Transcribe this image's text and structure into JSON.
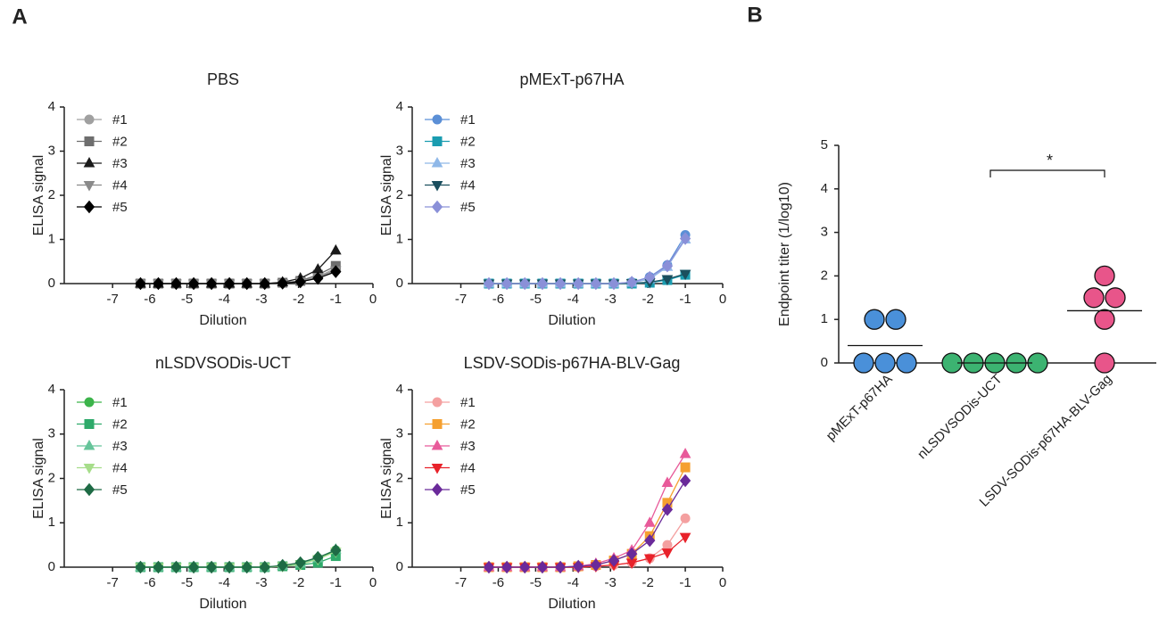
{
  "panels": [
    "A",
    "B"
  ],
  "chart_data": [
    {
      "type": "line",
      "title": "PBS",
      "xlabel": "Dilution",
      "ylabel": "ELISA signal",
      "xlim": [
        -8.3,
        0
      ],
      "xticks": [
        -7,
        -6,
        -5,
        -4,
        -3,
        -2,
        -1,
        0
      ],
      "ylim": [
        0,
        4
      ],
      "yticks": [
        0,
        1,
        2,
        3,
        4
      ],
      "x": [
        -6.25,
        -5.77,
        -5.29,
        -4.82,
        -4.34,
        -3.86,
        -3.39,
        -2.91,
        -2.43,
        -1.95,
        -1.48,
        -1
      ],
      "series": [
        {
          "name": "#1",
          "color": "#a0a0a0",
          "marker": "circle",
          "values": [
            0,
            0,
            0,
            0,
            0,
            0,
            0,
            0,
            0.02,
            0.05,
            0.15,
            0.35
          ]
        },
        {
          "name": "#2",
          "color": "#6e6e6e",
          "marker": "square",
          "values": [
            0,
            0,
            0,
            0,
            0,
            0,
            0,
            0,
            0.02,
            0.06,
            0.2,
            0.4
          ]
        },
        {
          "name": "#3",
          "color": "#1a1a1a",
          "marker": "triangle",
          "values": [
            0,
            0,
            0,
            0,
            0,
            0,
            0,
            0,
            0.03,
            0.12,
            0.32,
            0.75
          ]
        },
        {
          "name": "#4",
          "color": "#8a8a8a",
          "marker": "triangle-down",
          "values": [
            0,
            0,
            0,
            0,
            0,
            0,
            0,
            0,
            0.01,
            0.05,
            0.15,
            0.3
          ]
        },
        {
          "name": "#5",
          "color": "#000000",
          "marker": "diamond",
          "values": [
            0,
            0,
            0,
            0,
            0,
            0,
            0,
            0,
            0.01,
            0.04,
            0.12,
            0.27
          ]
        }
      ]
    },
    {
      "type": "line",
      "title": "pMExT-p67HA",
      "xlabel": "Dilution",
      "ylabel": "ELISA signal",
      "xlim": [
        -8.3,
        0
      ],
      "xticks": [
        -7,
        -6,
        -5,
        -4,
        -3,
        -2,
        -1,
        0
      ],
      "ylim": [
        0,
        4
      ],
      "yticks": [
        0,
        1,
        2,
        3,
        4
      ],
      "x": [
        -6.25,
        -5.77,
        -5.29,
        -4.82,
        -4.34,
        -3.86,
        -3.39,
        -2.91,
        -2.43,
        -1.95,
        -1.48,
        -1
      ],
      "series": [
        {
          "name": "#1",
          "color": "#5b8fd6",
          "marker": "circle",
          "values": [
            0,
            0,
            0,
            0,
            0,
            0,
            0,
            0,
            0.03,
            0.15,
            0.42,
            1.1
          ]
        },
        {
          "name": "#2",
          "color": "#1a9cb0",
          "marker": "square",
          "values": [
            0,
            0,
            0,
            0,
            0,
            0,
            0,
            0,
            0,
            0.02,
            0.08,
            0.2
          ]
        },
        {
          "name": "#3",
          "color": "#8fb8e8",
          "marker": "triangle",
          "values": [
            0,
            0,
            0,
            0,
            0,
            0,
            0,
            0,
            0.02,
            0.1,
            0.38,
            1.0
          ]
        },
        {
          "name": "#4",
          "color": "#1b4f5e",
          "marker": "triangle-down",
          "values": [
            0,
            0,
            0,
            0,
            0,
            0,
            0,
            0,
            0.01,
            0.03,
            0.1,
            0.22
          ]
        },
        {
          "name": "#5",
          "color": "#8a90d8",
          "marker": "diamond",
          "values": [
            0,
            0,
            0,
            0,
            0,
            0,
            0,
            0,
            0.03,
            0.14,
            0.4,
            1.02
          ]
        }
      ]
    },
    {
      "type": "line",
      "title": "nLSDVSODis-UCT",
      "xlabel": "Dilution",
      "ylabel": "ELISA signal",
      "xlim": [
        -8.3,
        0
      ],
      "xticks": [
        -7,
        -6,
        -5,
        -4,
        -3,
        -2,
        -1,
        0
      ],
      "ylim": [
        0,
        4
      ],
      "yticks": [
        0,
        1,
        2,
        3,
        4
      ],
      "x": [
        -6.25,
        -5.77,
        -5.29,
        -4.82,
        -4.34,
        -3.86,
        -3.39,
        -2.91,
        -2.43,
        -1.95,
        -1.48,
        -1
      ],
      "series": [
        {
          "name": "#1",
          "color": "#3cb44b",
          "marker": "circle",
          "values": [
            0,
            0,
            0,
            0,
            0,
            0,
            0,
            0,
            0.03,
            0.08,
            0.2,
            0.38
          ]
        },
        {
          "name": "#2",
          "color": "#2eaa6a",
          "marker": "square",
          "values": [
            0,
            0,
            0,
            0,
            0,
            0,
            0,
            0,
            0.02,
            0.05,
            0.1,
            0.25
          ]
        },
        {
          "name": "#3",
          "color": "#66c49a",
          "marker": "triangle",
          "values": [
            0,
            0,
            0,
            0,
            0,
            0,
            0,
            0,
            0.03,
            0.08,
            0.2,
            0.4
          ]
        },
        {
          "name": "#4",
          "color": "#a6dd8a",
          "marker": "triangle-down",
          "values": [
            0,
            0,
            0,
            0,
            0,
            0,
            0,
            0,
            0.02,
            0.06,
            0.18,
            0.35
          ]
        },
        {
          "name": "#5",
          "color": "#1e6b45",
          "marker": "diamond",
          "values": [
            0,
            0,
            0,
            0,
            0,
            0,
            0,
            0,
            0.04,
            0.1,
            0.22,
            0.38
          ]
        }
      ]
    },
    {
      "type": "line",
      "title": "LSDV-SODis-p67HA-BLV-Gag",
      "xlabel": "Dilution",
      "ylabel": "ELISA signal",
      "xlim": [
        -8.3,
        0
      ],
      "xticks": [
        -7,
        -6,
        -5,
        -4,
        -3,
        -2,
        -1,
        0
      ],
      "ylim": [
        0,
        4
      ],
      "yticks": [
        0,
        1,
        2,
        3,
        4
      ],
      "x": [
        -6.25,
        -5.77,
        -5.29,
        -4.82,
        -4.34,
        -3.86,
        -3.39,
        -2.91,
        -2.43,
        -1.95,
        -1.48,
        -1
      ],
      "series": [
        {
          "name": "#1",
          "color": "#f4a0a0",
          "marker": "circle",
          "values": [
            0,
            0,
            0,
            0,
            0,
            0,
            0.02,
            0.05,
            0.1,
            0.2,
            0.5,
            1.1
          ]
        },
        {
          "name": "#2",
          "color": "#f5a030",
          "marker": "square",
          "values": [
            0,
            0,
            0,
            0,
            0,
            0.02,
            0.05,
            0.15,
            0.3,
            0.7,
            1.45,
            2.25
          ]
        },
        {
          "name": "#3",
          "color": "#e85a9a",
          "marker": "triangle",
          "values": [
            0,
            0,
            0,
            0,
            0,
            0.02,
            0.08,
            0.2,
            0.38,
            1.0,
            1.9,
            2.55
          ]
        },
        {
          "name": "#4",
          "color": "#e8222a",
          "marker": "triangle-down",
          "values": [
            0,
            0,
            0,
            0,
            0,
            0,
            0.02,
            0.05,
            0.1,
            0.2,
            0.33,
            0.68
          ]
        },
        {
          "name": "#5",
          "color": "#6a2a9a",
          "marker": "diamond",
          "values": [
            0,
            0,
            0,
            0,
            0,
            0.02,
            0.05,
            0.15,
            0.3,
            0.6,
            1.3,
            1.95
          ]
        }
      ]
    },
    {
      "type": "dot",
      "ylabel": "Endpoint titer (1/log10)",
      "ylim": [
        0,
        5
      ],
      "yticks": [
        0,
        1,
        2,
        3,
        4,
        5
      ],
      "categories": [
        "pMExT-p67HA",
        "nLSDVSODis-UCT",
        "LSDV-SODis-p67HA-BLV-Gag"
      ],
      "colors": [
        "#4a90d9",
        "#3cb371",
        "#e8558a"
      ],
      "values": [
        [
          1,
          1,
          0,
          0,
          0
        ],
        [
          0,
          0,
          0,
          0,
          0
        ],
        [
          2,
          1.5,
          1.5,
          1,
          0
        ]
      ],
      "means": [
        0.4,
        0,
        1.2
      ],
      "annotation": "*"
    }
  ]
}
